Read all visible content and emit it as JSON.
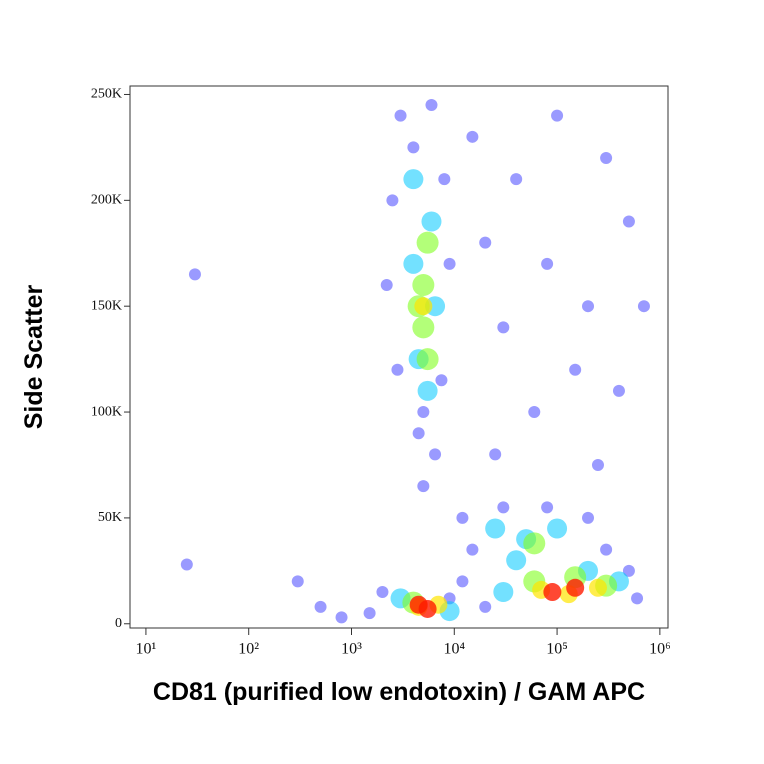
{
  "chart_data": {
    "type": "scatter",
    "xlabel": "CD81 (purified low endotoxin) / GAM APC",
    "ylabel": "Side Scatter",
    "xscale": "log",
    "xlim": [
      7,
      1200000
    ],
    "ylim": [
      -2000,
      254000
    ],
    "xticks": [
      {
        "value": 10,
        "label": "10¹"
      },
      {
        "value": 100,
        "label": "10²"
      },
      {
        "value": 1000,
        "label": "10³"
      },
      {
        "value": 10000,
        "label": "10⁴"
      },
      {
        "value": 100000,
        "label": "10⁵"
      },
      {
        "value": 1000000,
        "label": "10⁶"
      }
    ],
    "yticks": [
      0,
      {
        "value": 50000,
        "label": "50K"
      },
      {
        "value": 100000,
        "label": "100K"
      },
      {
        "value": 150000,
        "label": "150K"
      },
      {
        "value": 200000,
        "label": "200K"
      },
      {
        "value": 250000,
        "label": "250K"
      }
    ],
    "series": [
      {
        "color": "#1f1fff",
        "x": [
          3000,
          4000,
          6000,
          2500,
          8000,
          2200,
          9000,
          2800,
          7500,
          5000,
          4500,
          6500,
          5000,
          15000,
          40000,
          100000,
          300000,
          20000,
          80000,
          200000,
          500000,
          30000,
          150000,
          400000,
          60000,
          25000,
          250000,
          700000,
          12000,
          30000,
          80000,
          200000,
          15000,
          300000,
          500000,
          1500,
          2000,
          9000,
          12000,
          20000,
          600000,
          800,
          500,
          300,
          25,
          30
        ],
        "values": [
          240000,
          225000,
          245000,
          200000,
          210000,
          160000,
          170000,
          120000,
          115000,
          100000,
          90000,
          80000,
          65000,
          230000,
          210000,
          240000,
          220000,
          180000,
          170000,
          150000,
          190000,
          140000,
          120000,
          110000,
          100000,
          80000,
          75000,
          150000,
          50000,
          55000,
          55000,
          50000,
          35000,
          35000,
          25000,
          5000,
          15000,
          12000,
          20000,
          8000,
          12000,
          3000,
          8000,
          20000,
          28000,
          165000
        ]
      },
      {
        "color": "#00c8ff",
        "x": [
          4000,
          6000,
          4000,
          6500,
          4500,
          5500,
          25000,
          50000,
          100000,
          40000,
          3000,
          9000,
          30000,
          400000,
          200000
        ],
        "values": [
          210000,
          190000,
          170000,
          150000,
          125000,
          110000,
          45000,
          40000,
          45000,
          30000,
          12000,
          6000,
          15000,
          20000,
          25000
        ]
      },
      {
        "color": "#80ff20",
        "x": [
          5500,
          5000,
          5000,
          4500,
          5500,
          60000,
          4000,
          60000,
          300000,
          150000
        ],
        "values": [
          180000,
          160000,
          140000,
          150000,
          125000,
          38000,
          10000,
          20000,
          18000,
          22000
        ]
      },
      {
        "color": "#ffe600",
        "x": [
          5000,
          4500,
          7000,
          70000,
          250000,
          130000
        ],
        "values": [
          150000,
          8000,
          9000,
          16000,
          17000,
          14000
        ]
      },
      {
        "color": "#ff1a00",
        "x": [
          5500,
          4500,
          90000,
          150000
        ],
        "values": [
          7000,
          9000,
          15000,
          17000
        ]
      }
    ]
  }
}
